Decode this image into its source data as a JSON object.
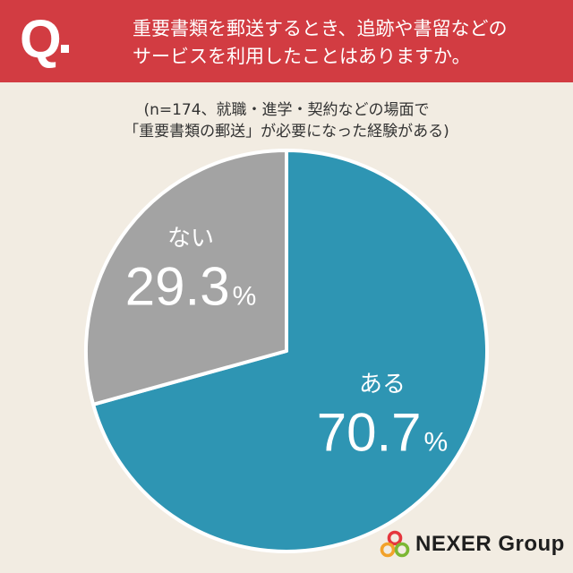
{
  "header": {
    "q_mark": "Q",
    "question_lines": [
      "重要書類を郵送するとき、追跡や書留などの",
      "サービスを利用したことはありますか。"
    ],
    "bg_color": "#d23c42"
  },
  "subtitle_lines": [
    "(n=174、就職・進学・契約などの場面で",
    "「重要書類の郵送」が必要になった経験がある)"
  ],
  "chart_data": {
    "type": "pie",
    "slices": [
      {
        "label": "ある",
        "value": 70.7,
        "display": "70.7",
        "unit": "%",
        "color": "#2e95b3"
      },
      {
        "label": "ない",
        "value": 29.3,
        "display": "29.3",
        "unit": "%",
        "color": "#a3a3a3"
      }
    ],
    "start": "12 o'clock",
    "direction": "clockwise"
  },
  "logo": {
    "text": "NEXER Group",
    "mark_colors": [
      "#e5363d",
      "#f2a22a",
      "#7cb733"
    ]
  }
}
